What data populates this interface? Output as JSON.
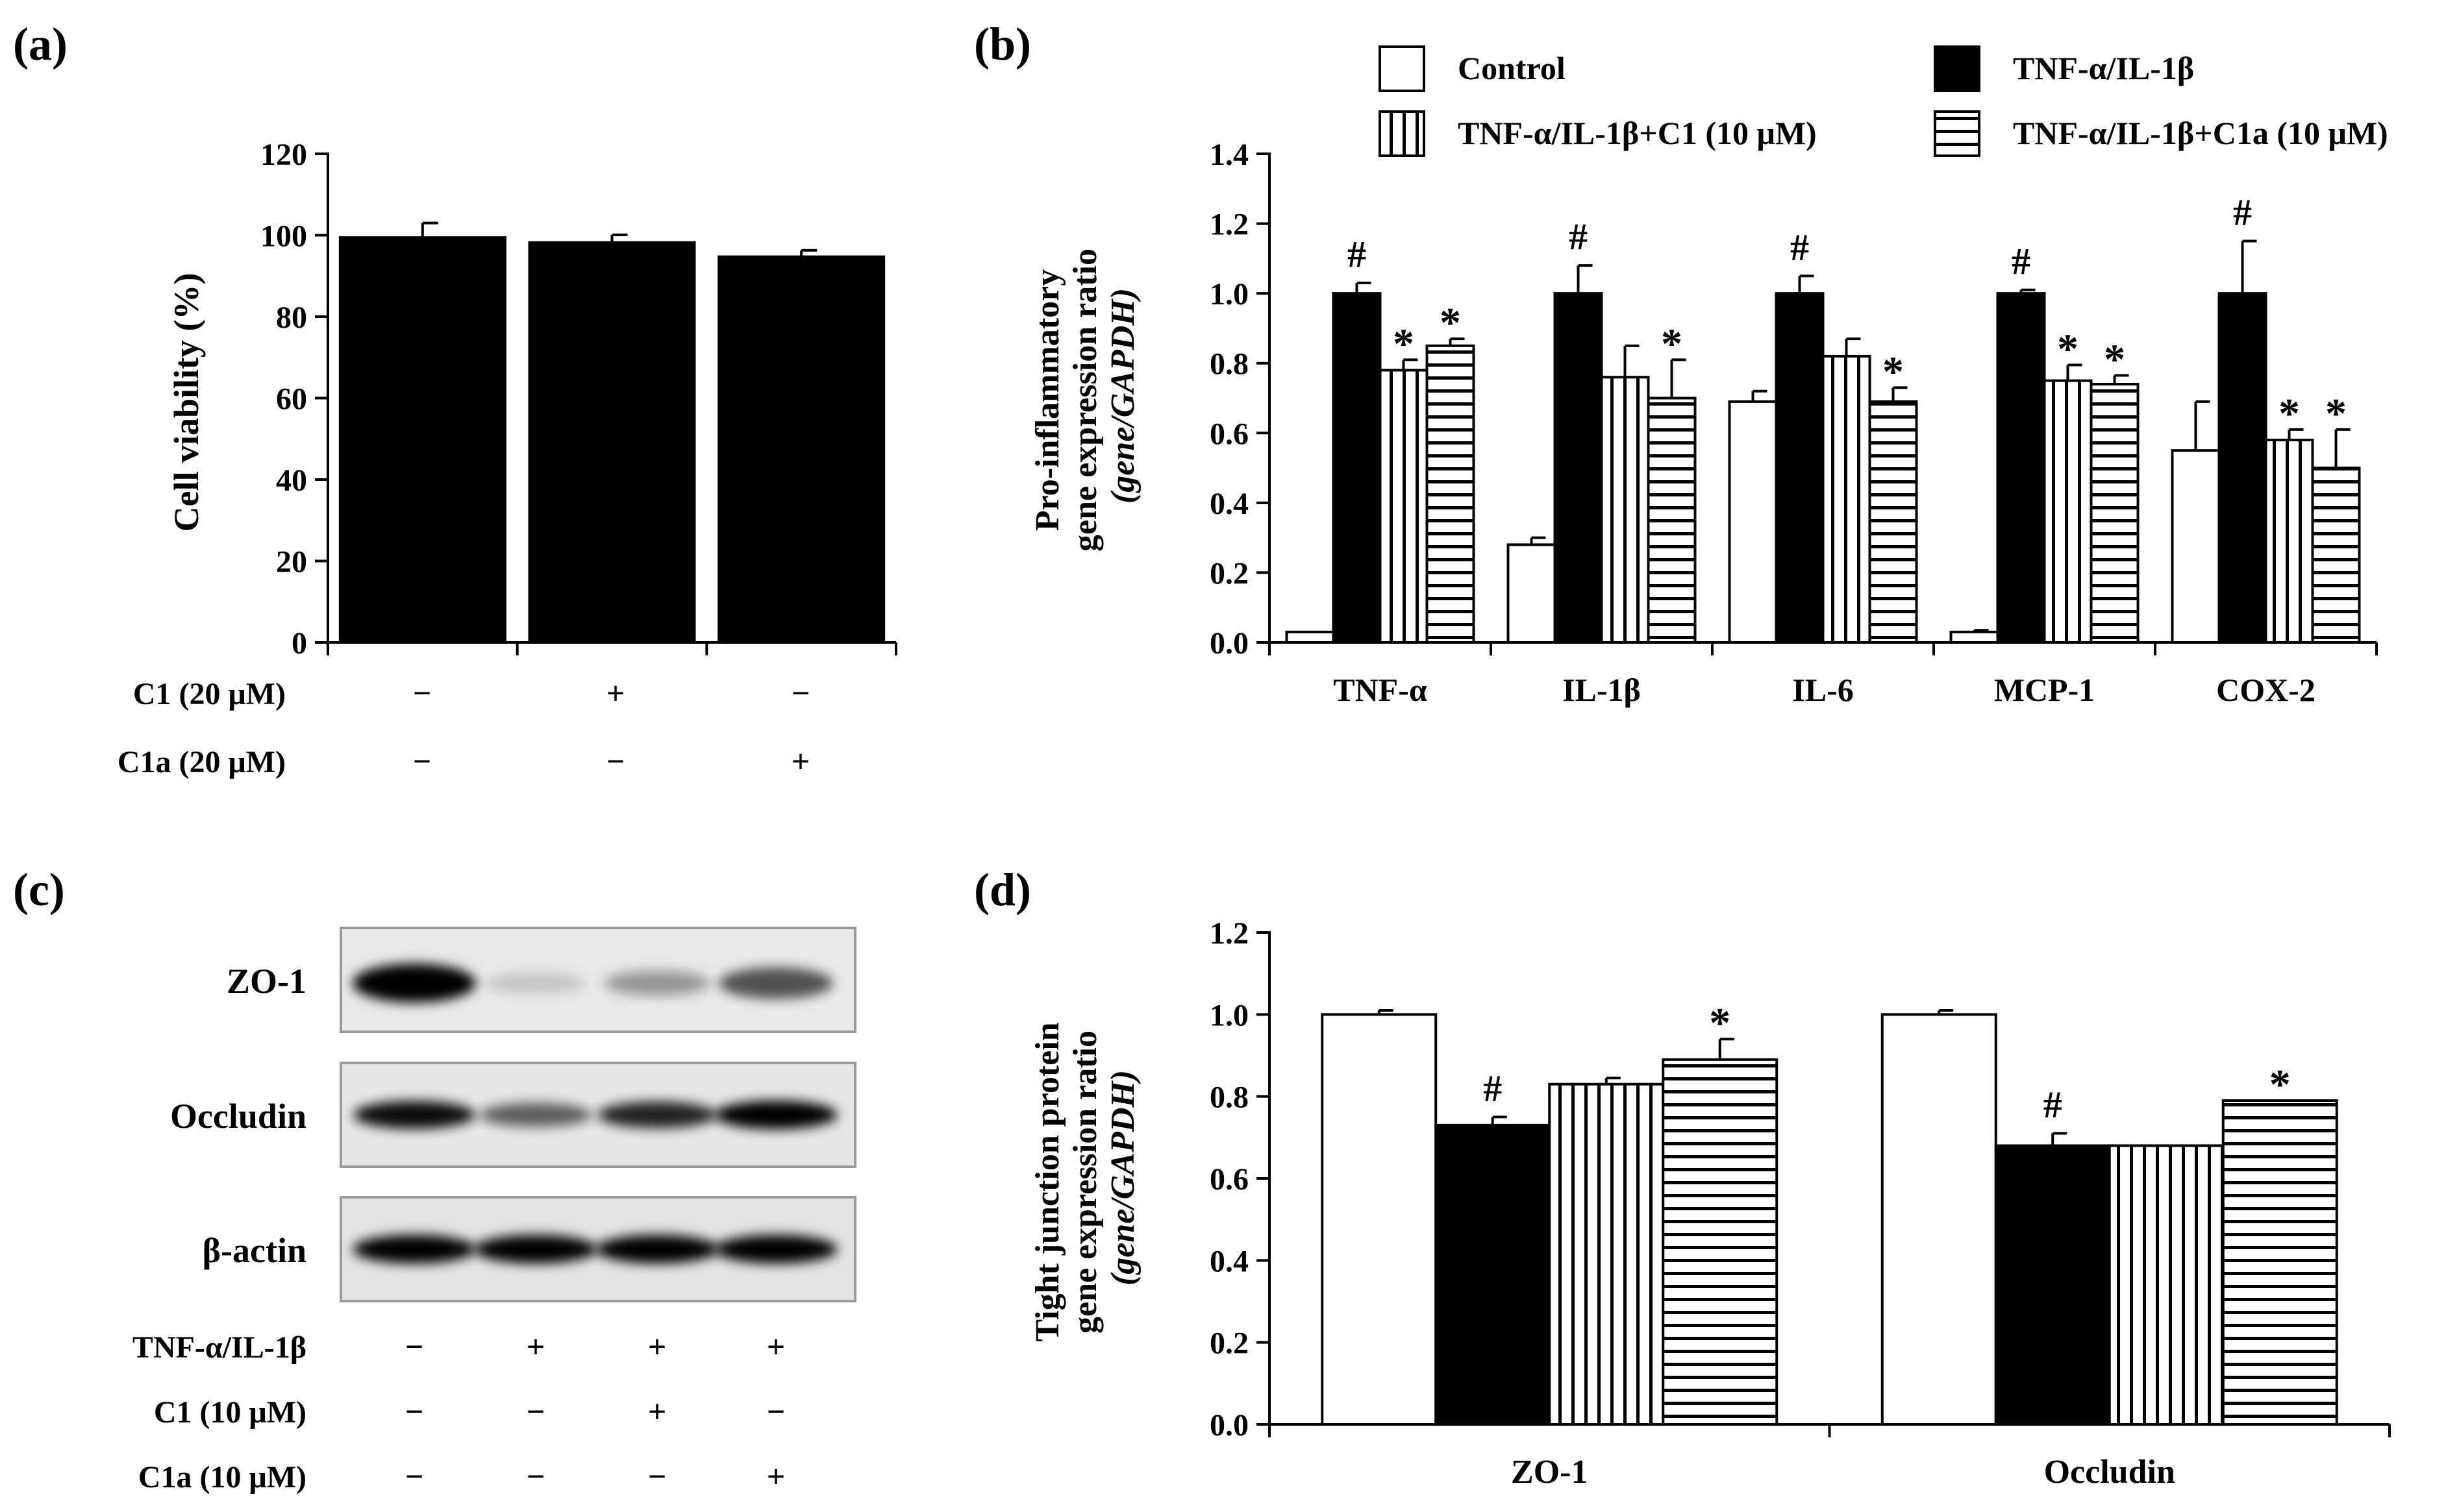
{
  "chart_data": [
    {
      "id": "a",
      "type": "bar",
      "panel_label": "(a)",
      "ylabel": "Cell viability (%)",
      "ylim": [
        0,
        120
      ],
      "yticks": [
        "0",
        "20",
        "40",
        "60",
        "80",
        "100",
        "120"
      ],
      "categories": [
        "",
        "",
        ""
      ],
      "values": [
        99.5,
        98.3,
        94.8
      ],
      "errors": [
        3.5,
        1.8,
        1.5
      ],
      "grid": false,
      "conditions": [
        {
          "label": "C1 (20 μM)",
          "marks": [
            "−",
            "+",
            "−"
          ]
        },
        {
          "label": "C1a (20 μM)",
          "marks": [
            "−",
            "−",
            "+"
          ]
        }
      ]
    },
    {
      "id": "b",
      "type": "bar",
      "panel_label": "(b)",
      "ylabel_lines": [
        "Pro-inflammatory",
        "gene expression ratio",
        "(gene/GAPDH)"
      ],
      "ylim": [
        0,
        1.4
      ],
      "yticks": [
        "0.0",
        "0.2",
        "0.4",
        "0.6",
        "0.8",
        "1.0",
        "1.2",
        "1.4"
      ],
      "categories": [
        "TNF-α",
        "IL-1β",
        "IL-6",
        "MCP-1",
        "COX-2"
      ],
      "grid": false,
      "legend": "top",
      "series": [
        {
          "name": "Control",
          "values": [
            0.03,
            0.28,
            0.69,
            0.03,
            0.55
          ],
          "errors": [
            0,
            0.02,
            0.03,
            0.005,
            0.14
          ],
          "marks": [
            "",
            "",
            "",
            "",
            ""
          ]
        },
        {
          "name": "TNF-α/IL-1β",
          "values": [
            1.0,
            1.0,
            1.0,
            1.0,
            1.0
          ],
          "errors": [
            0.03,
            0.08,
            0.05,
            0.01,
            0.15
          ],
          "marks": [
            "#",
            "#",
            "#",
            "#",
            "#"
          ]
        },
        {
          "name": "TNF-α/IL-1β+C1 (10 μM)",
          "values": [
            0.78,
            0.76,
            0.82,
            0.75,
            0.58
          ],
          "errors": [
            0.03,
            0.09,
            0.05,
            0.045,
            0.03
          ],
          "marks": [
            "*",
            "",
            "",
            "*",
            "*"
          ]
        },
        {
          "name": "TNF-α/IL-1β+C1a (10 μM)",
          "values": [
            0.85,
            0.7,
            0.69,
            0.74,
            0.5
          ],
          "errors": [
            0.02,
            0.11,
            0.04,
            0.025,
            0.11
          ],
          "marks": [
            "*",
            "*",
            "*",
            "*",
            "*"
          ]
        }
      ]
    },
    {
      "id": "d",
      "type": "bar",
      "panel_label": "(d)",
      "ylabel_lines": [
        "Tight junction protein",
        "gene expression ratio",
        "(gene/GAPDH)"
      ],
      "ylim": [
        0,
        1.2
      ],
      "yticks": [
        "0.0",
        "0.2",
        "0.4",
        "0.6",
        "0.8",
        "1.0",
        "1.2"
      ],
      "categories": [
        "ZO-1",
        "Occludin"
      ],
      "grid": false,
      "series": [
        {
          "name": "Control",
          "values": [
            1.0,
            1.0
          ],
          "errors": [
            0.01,
            0.01
          ],
          "marks": [
            "",
            ""
          ]
        },
        {
          "name": "TNF-α/IL-1β",
          "values": [
            0.73,
            0.68
          ],
          "errors": [
            0.02,
            0.03
          ],
          "marks": [
            "#",
            "#"
          ]
        },
        {
          "name": "TNF-α/IL-1β+C1 (10 μM)",
          "values": [
            0.83,
            0.68
          ],
          "errors": [
            0.015,
            0
          ],
          "marks": [
            "",
            ""
          ]
        },
        {
          "name": "TNF-α/IL-1β+C1a (10 μM)",
          "values": [
            0.89,
            0.79
          ],
          "errors": [
            0.05,
            0
          ],
          "marks": [
            "*",
            "*"
          ]
        }
      ]
    }
  ],
  "blot": {
    "panel_label": "(c)",
    "rows": [
      {
        "label": "ZO-1",
        "intensity": [
          1.0,
          0.15,
          0.35,
          0.65
        ]
      },
      {
        "label": "Occludin",
        "intensity": [
          0.95,
          0.6,
          0.85,
          1.0
        ]
      },
      {
        "label": "β-actin",
        "intensity": [
          1.0,
          1.0,
          1.0,
          1.0
        ]
      }
    ],
    "conditions": [
      {
        "label": "TNF-α/IL-1β",
        "marks": [
          "−",
          "+",
          "+",
          "+"
        ]
      },
      {
        "label": "C1 (10 μM)",
        "marks": [
          "−",
          "−",
          "+",
          "−"
        ]
      },
      {
        "label": "C1a (10 μM)",
        "marks": [
          "−",
          "−",
          "−",
          "+"
        ]
      }
    ]
  },
  "colors": {
    "ink": "#000000",
    "paper": "#ffffff"
  }
}
